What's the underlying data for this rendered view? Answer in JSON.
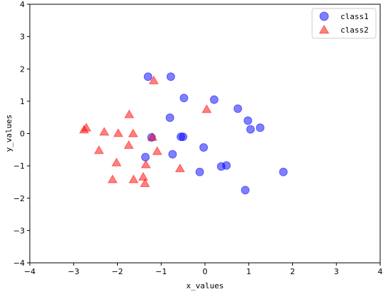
{
  "chart_data": {
    "type": "scatter",
    "title": "",
    "xlabel": "x_values",
    "ylabel": "y_values",
    "xlim": [
      -4,
      4
    ],
    "ylim": [
      -4,
      4
    ],
    "xticks": [
      "−4",
      "−3",
      "−2",
      "−1",
      "0",
      "1",
      "2",
      "3",
      "4"
    ],
    "yticks": [
      "−4",
      "−3",
      "−2",
      "−1",
      "0",
      "1",
      "2",
      "3",
      "4"
    ],
    "grid": false,
    "legend_position": "top-right",
    "series": [
      {
        "name": "class1",
        "marker": "circle",
        "color": "#0000ff",
        "points": [
          [
            -1.3,
            1.76
          ],
          [
            -0.78,
            1.76
          ],
          [
            -0.48,
            1.1
          ],
          [
            0.21,
            1.05
          ],
          [
            0.75,
            0.77
          ],
          [
            0.98,
            0.4
          ],
          [
            1.04,
            0.13
          ],
          [
            1.26,
            0.18
          ],
          [
            -0.8,
            0.49
          ],
          [
            -1.22,
            -0.12
          ],
          [
            -0.55,
            -0.1
          ],
          [
            -0.5,
            -0.1
          ],
          [
            -1.36,
            -0.73
          ],
          [
            -0.74,
            -0.64
          ],
          [
            -0.03,
            -0.43
          ],
          [
            0.37,
            -1.02
          ],
          [
            0.49,
            -0.99
          ],
          [
            -0.12,
            -1.19
          ],
          [
            1.79,
            -1.19
          ],
          [
            0.92,
            -1.75
          ]
        ]
      },
      {
        "name": "class2",
        "marker": "triangle",
        "color": "#ff0000",
        "points": [
          [
            -1.17,
            1.63
          ],
          [
            0.04,
            0.74
          ],
          [
            -1.73,
            0.58
          ],
          [
            -2.71,
            0.17
          ],
          [
            -2.76,
            0.11
          ],
          [
            -2.3,
            0.04
          ],
          [
            -1.98,
            0.0
          ],
          [
            -1.64,
            -0.01
          ],
          [
            -1.2,
            -0.12
          ],
          [
            -1.74,
            -0.37
          ],
          [
            -2.42,
            -0.53
          ],
          [
            -1.09,
            -0.56
          ],
          [
            -1.35,
            -0.97
          ],
          [
            -2.02,
            -0.91
          ],
          [
            -0.57,
            -1.09
          ],
          [
            -1.41,
            -1.35
          ],
          [
            -2.11,
            -1.43
          ],
          [
            -1.63,
            -1.43
          ],
          [
            -1.37,
            -1.55
          ]
        ]
      }
    ]
  }
}
